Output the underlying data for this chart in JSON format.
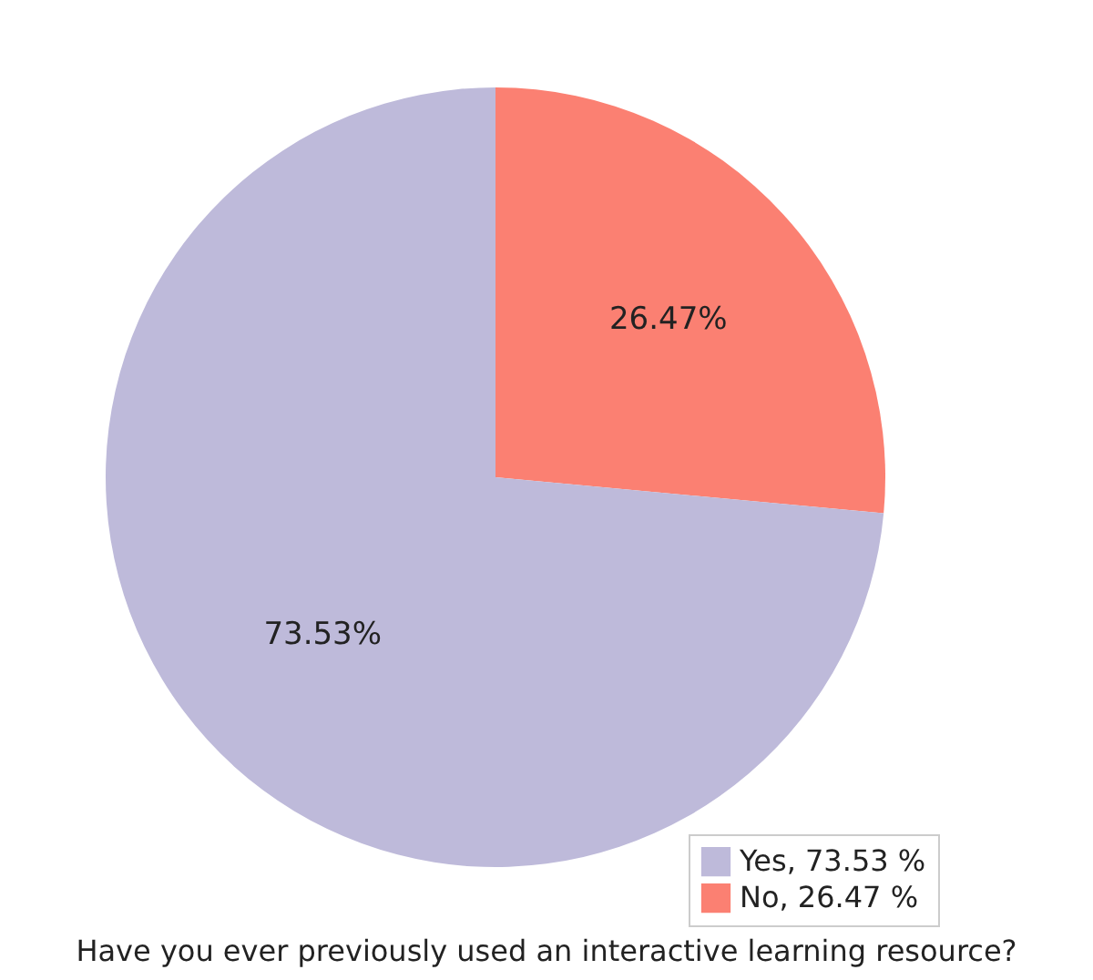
{
  "chart_data": {
    "type": "pie",
    "title": "Have you ever previously used an interactive learning resource?",
    "categories": [
      "Yes, 73.53 %",
      "No, 26.47 %"
    ],
    "values": [
      73.53,
      26.47
    ],
    "colors": [
      "#bebada",
      "#fb8072"
    ],
    "value_labels": [
      "73.53%",
      "26.47%"
    ],
    "legend": "bottom right"
  }
}
